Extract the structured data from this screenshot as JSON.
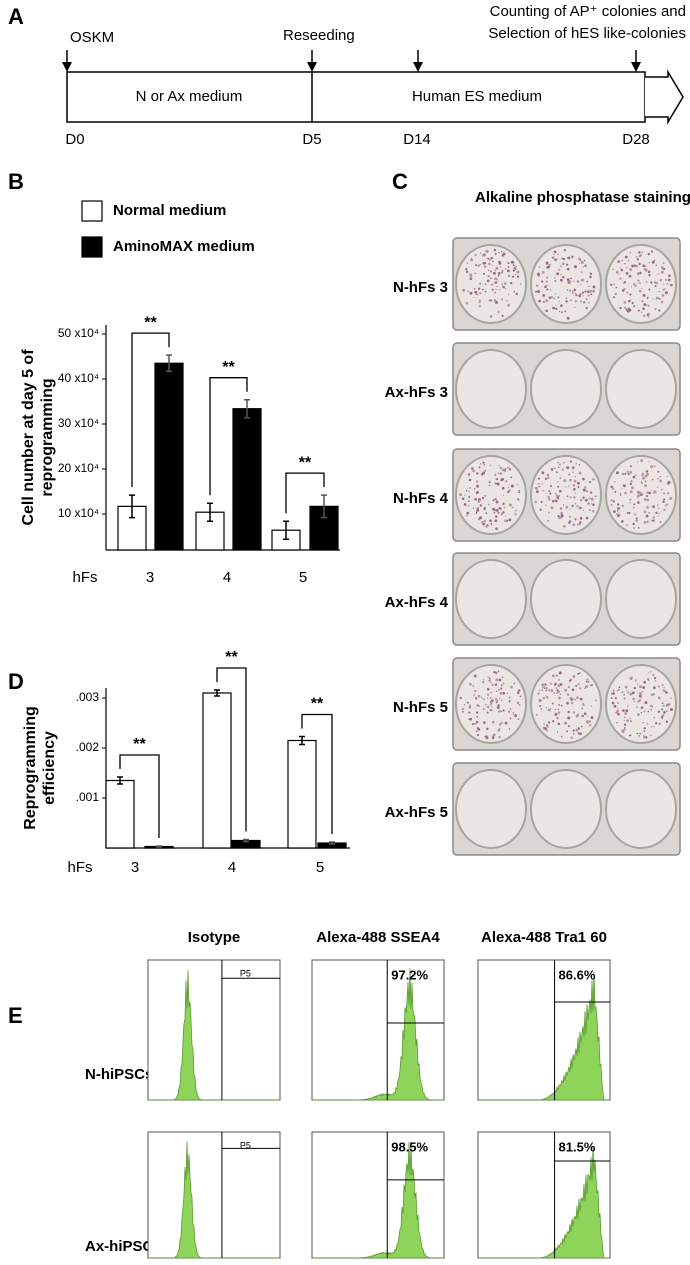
{
  "panel_labels": [
    "A",
    "B",
    "C",
    "D",
    "E"
  ],
  "timeline": {
    "top_labels": [
      "OSKM",
      "Reseeding"
    ],
    "note": [
      "Counting of AP⁺ colonies and",
      "Selection of hES like-colonies"
    ],
    "phases": [
      "N or Ax medium",
      "Human ES medium"
    ],
    "days": [
      "D0",
      "D5",
      "D14",
      "D28"
    ]
  },
  "chart_data": [
    {
      "type": "bar",
      "ylabel": [
        "Cell number at day 5 of",
        "reprogramming"
      ],
      "xlabel": "hFs",
      "categories": [
        "3",
        "4",
        "5"
      ],
      "series": [
        {
          "name": "Normal medium",
          "color": "#ffffff",
          "values": [
            11.7,
            10.4,
            6.4
          ],
          "errors": [
            2.5,
            2,
            2
          ]
        },
        {
          "name": "AminoMAX medium",
          "color": "#000000",
          "values": [
            43.5,
            33.4,
            11.7
          ],
          "errors": [
            1.8,
            2,
            2.5
          ]
        }
      ],
      "ylim": [
        2,
        52
      ],
      "yticks": [
        {
          "value": 10,
          "label": "10 x10⁴"
        },
        {
          "value": 20,
          "label": "20 x10⁴"
        },
        {
          "value": 30,
          "label": "30 x10⁴"
        },
        {
          "value": 40,
          "label": "40 x10⁴"
        },
        {
          "value": 50,
          "label": "50 x10⁴"
        }
      ],
      "annotations": [
        "**",
        "**",
        "**"
      ]
    },
    {
      "type": "bar",
      "ylabel": [
        "Reprogramming",
        "efficiency"
      ],
      "xlabel": "hFs",
      "categories": [
        "3",
        "4",
        "5"
      ],
      "series": [
        {
          "name": "Normal medium",
          "color": "#ffffff",
          "values": [
            0.00135,
            0.0031,
            0.00215
          ],
          "errors": [
            7e-05,
            6e-05,
            8e-05
          ]
        },
        {
          "name": "AminoMAX medium",
          "color": "#000000",
          "values": [
            3e-05,
            0.00015,
            0.0001
          ],
          "errors": [
            1e-05,
            2e-05,
            2e-05
          ]
        }
      ],
      "ylim": [
        0,
        0.0032
      ],
      "yticks": [
        {
          "value": 0.001,
          "label": ".001"
        },
        {
          "value": 0.002,
          "label": ".002"
        },
        {
          "value": 0.003,
          "label": ".003"
        }
      ],
      "annotations": [
        "**",
        "**",
        "**"
      ]
    }
  ],
  "staining": {
    "title": "Alkaline phosphatase staining",
    "rows": [
      "N-hFs 3",
      "Ax-hFs 3",
      "N-hFs 4",
      "Ax-hFs 4",
      "N-hFs 5",
      "Ax-hFs 5"
    ]
  },
  "flow": {
    "columns": [
      "Isotype",
      "Alexa-488 SSEA4",
      "Alexa-488 Tra1 60"
    ],
    "rows": [
      {
        "label": "N-hiPSCs",
        "gates": [
          "P5",
          "97.2%",
          "86.6%"
        ]
      },
      {
        "label": "Ax-hiPSCs",
        "gates": [
          "P5",
          "98.5%",
          "81.5%"
        ]
      }
    ]
  }
}
